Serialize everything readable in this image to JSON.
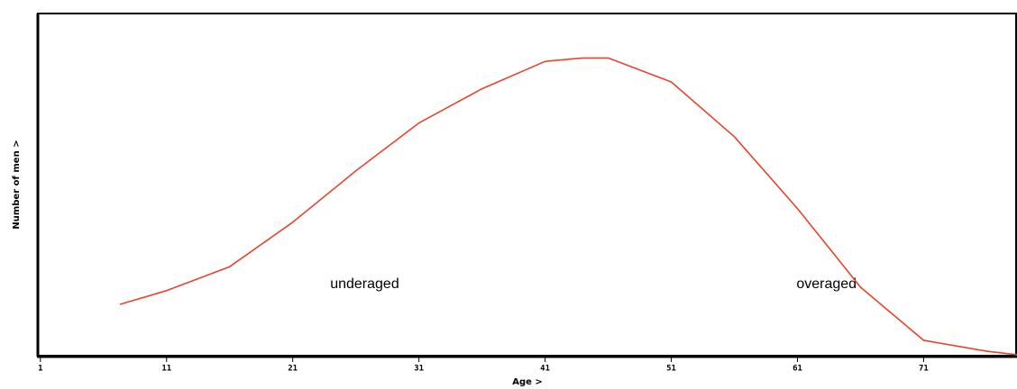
{
  "chart_data": {
    "type": "line",
    "x_label": "Age >",
    "y_label": "Number of men >",
    "x": [
      7.3,
      11,
      16,
      21,
      26,
      31,
      36,
      41,
      44,
      46,
      51,
      56,
      61,
      66,
      71,
      76,
      78.4
    ],
    "series": [
      {
        "name": null,
        "color": "#e8432e",
        "values": [
          15,
          19,
          26,
          39,
          54,
          68,
          78,
          86,
          87,
          87,
          80,
          64,
          43,
          20,
          4.5,
          1.3,
          0.3
        ]
      }
    ],
    "xlim": [
      0.8,
      78.4
    ],
    "ylim": [
      0,
      100
    ],
    "xticks": [
      1,
      11,
      21,
      31,
      41,
      51,
      61,
      71
    ],
    "annotations": [
      {
        "text": "underaged",
        "x": 26.7
      },
      {
        "text": "overaged",
        "x": 63.3
      }
    ]
  }
}
